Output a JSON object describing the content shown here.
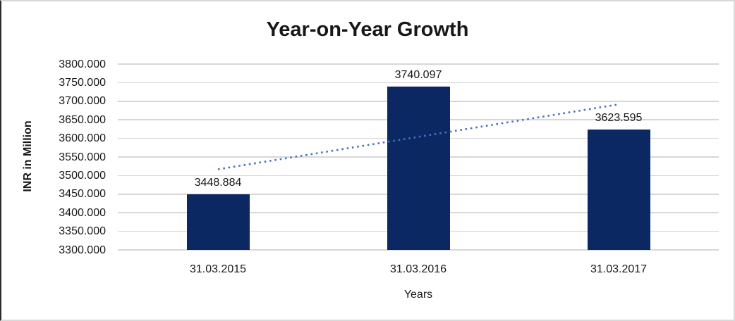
{
  "chart_data": {
    "type": "bar",
    "title": "Year-on-Year Growth",
    "xlabel": "Years",
    "ylabel": "INR in Million",
    "categories": [
      "31.03.2015",
      "31.03.2016",
      "31.03.2017"
    ],
    "values": [
      3448.884,
      3740.097,
      3623.595
    ],
    "data_labels": [
      "3448.884",
      "3740.097",
      "3623.595"
    ],
    "ylim": [
      3300,
      3800
    ],
    "ytick_step": 50,
    "ytick_decimals": 3,
    "ytick_labels": [
      "3300.000",
      "3350.000",
      "3400.000",
      "3450.000",
      "3500.000",
      "3550.000",
      "3600.000",
      "3650.000",
      "3700.000",
      "3750.000",
      "3800.000"
    ],
    "grid": "horizontal-only",
    "legend": "none",
    "bar_color": "#0B2862",
    "gridline_color": "#D7D7D7",
    "trendline": {
      "type": "linear",
      "style": "dotted",
      "color": "#4472C4"
    }
  }
}
